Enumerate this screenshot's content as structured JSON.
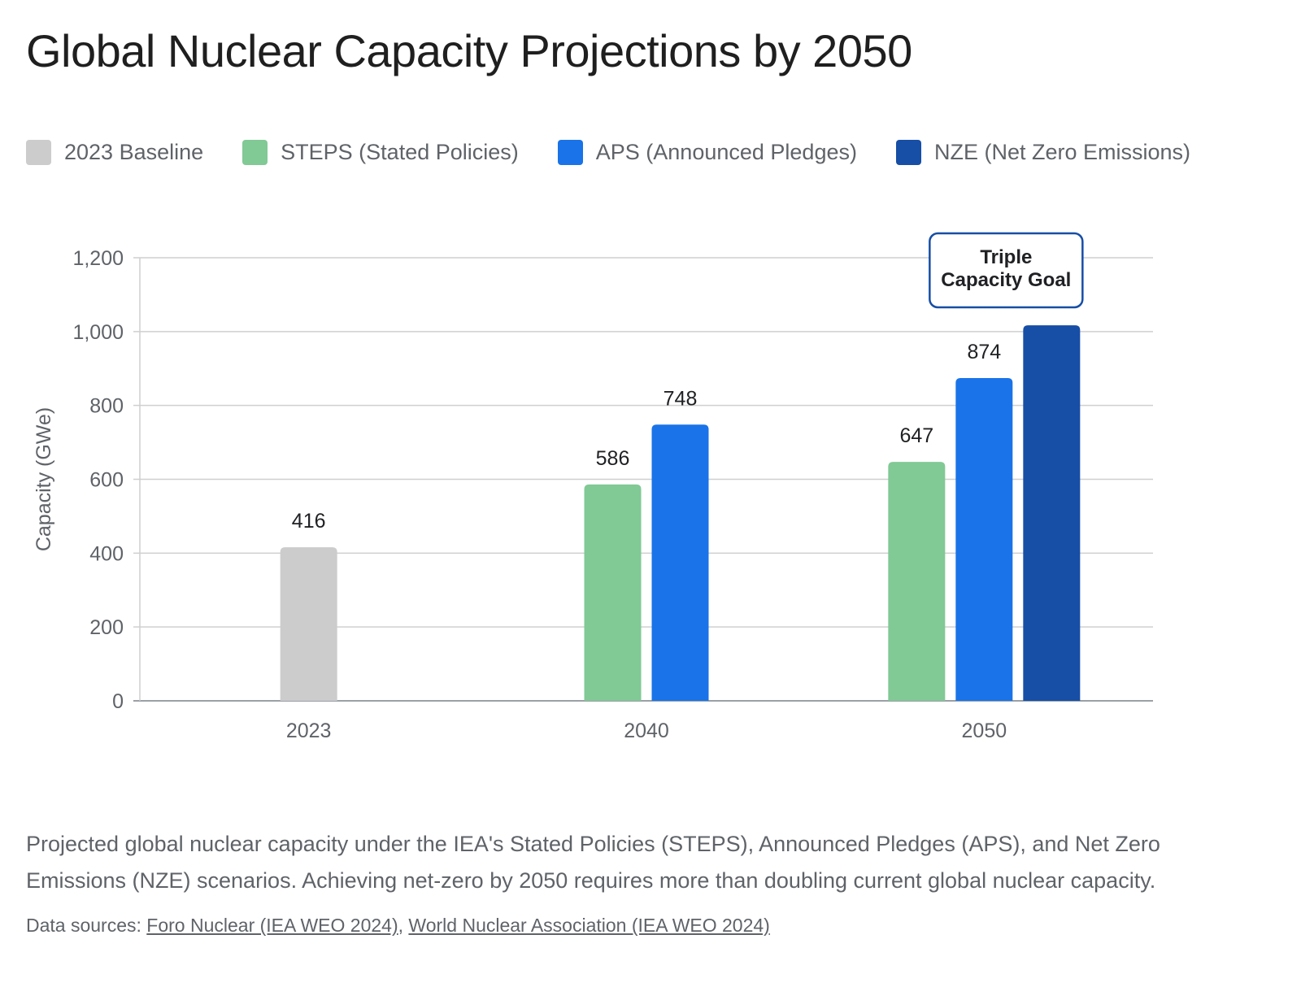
{
  "page": {
    "title": "Global Nuclear Capacity Projections by 2050",
    "caption": "Projected global nuclear capacity under the IEA's Stated Policies (STEPS), Announced Pledges (APS), and Net Zero Emissions (NZE) scenarios. Achieving net-zero by 2050 requires more than doubling current global nuclear capacity.",
    "sources_label": "Data sources: ",
    "sources": [
      {
        "label": "Foro Nuclear (IEA WEO 2024)"
      },
      {
        "label": "World Nuclear Association (IEA WEO 2024)"
      }
    ],
    "sources_separator": ", "
  },
  "chart_data": {
    "type": "bar",
    "title": "Global Nuclear Capacity Projections by 2050",
    "xlabel": "",
    "ylabel": "Capacity (GWe)",
    "ylim": [
      0,
      1200
    ],
    "yticks": [
      0,
      200,
      400,
      600,
      800,
      1000,
      1200
    ],
    "ytick_labels": [
      "0",
      "200",
      "400",
      "600",
      "800",
      "1,000",
      "1,200"
    ],
    "grid": true,
    "legend_position": "top",
    "categories": [
      "2023",
      "2040",
      "2050"
    ],
    "series": [
      {
        "name": "2023 Baseline",
        "color": "#cccccc",
        "values": [
          416,
          null,
          null
        ]
      },
      {
        "name": "STEPS (Stated Policies)",
        "color": "#81c995",
        "values": [
          null,
          586,
          647
        ]
      },
      {
        "name": "APS (Announced Pledges)",
        "color": "#1a73e8",
        "values": [
          null,
          748,
          874
        ]
      },
      {
        "name": "NZE (Net Zero Emissions)",
        "color": "#174ea6",
        "values": [
          null,
          null,
          1017
        ]
      }
    ],
    "annotations": [
      {
        "text_lines": [
          "Triple",
          "Capacity Goal"
        ],
        "category": "2050",
        "series": "NZE (Net Zero Emissions)",
        "border_color": "#174ea6"
      }
    ]
  }
}
